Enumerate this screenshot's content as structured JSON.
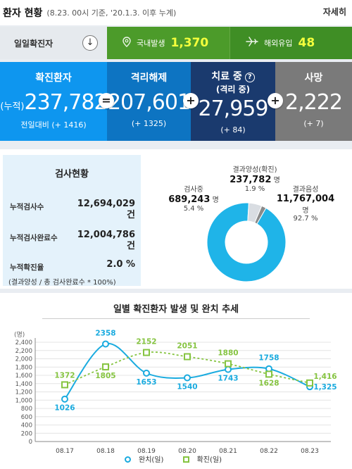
{
  "header": {
    "title": "환자 현황",
    "subtitle": "(8.23. 00시 기준, '20.1.3. 이후 누계)",
    "detail_label": "자세히"
  },
  "daily": {
    "label": "일일확진자",
    "arrow": "↓",
    "domestic_label": "국내발생",
    "domestic_value": "1,370",
    "imported_label": "해외유입",
    "imported_value": "48"
  },
  "stats": {
    "confirmed": {
      "label": "확진환자",
      "prefix": "(누적)",
      "value": "237,782",
      "delta": "전일대비 (+ 1416)"
    },
    "released": {
      "label": "격리해제",
      "value": "207,601",
      "delta": "(+ 1325)"
    },
    "treating": {
      "label": "치료 중",
      "label2": "(격리 중)",
      "value": "27,959",
      "delta": "(+ 84)"
    },
    "deaths": {
      "label": "사망",
      "value": "2,222",
      "delta": "(+ 7)"
    },
    "ops": [
      "=",
      "+",
      "+"
    ]
  },
  "tests": {
    "title": "검사현황",
    "rows": [
      {
        "label": "누적검사수",
        "value": "12,694,029",
        "unit": "건"
      },
      {
        "label": "누적검사완료수",
        "value": "12,004,786",
        "unit": "건"
      },
      {
        "label": "누적확진율",
        "value": "2.0 %",
        "unit": ""
      }
    ],
    "note": "(결과양성 / 총 검사완료수 * 100%)",
    "pie": {
      "positive_label": "결과양성(확진)",
      "positive_value": "237,782",
      "positive_unit": "명",
      "positive_pct": "1.9 %",
      "testing_label": "검사중",
      "testing_value": "689,243",
      "testing_unit": "명",
      "testing_pct": "5.4 %",
      "negative_label": "결과음성",
      "negative_value": "11,767,004",
      "negative_unit": "명",
      "negative_pct": "92.7 %",
      "fractions": {
        "negative": 0.927,
        "testing": 0.054,
        "positive": 0.019
      },
      "colors": {
        "negative": "#1fb4e8",
        "testing": "#d9dde2",
        "positive": "#8a8a8a"
      }
    }
  },
  "chart_data": {
    "type": "line",
    "title": "일별 확진환자 발생 및 완치 추세",
    "yunit": "(명)",
    "x": [
      "08.17",
      "08.18",
      "08.19",
      "08.20",
      "08.21",
      "08.22",
      "08.23"
    ],
    "ylim": [
      0,
      2400
    ],
    "yticks": [
      "0",
      "200",
      "400",
      "600",
      "800",
      "1,000",
      "1,200",
      "1,400",
      "1,600",
      "1,800",
      "2,000",
      "2,200",
      "2,400"
    ],
    "grid": true,
    "legend_position": "bottom",
    "series": [
      {
        "name": "완치(일)",
        "values": [
          1026,
          2358,
          1653,
          1540,
          1743,
          1758,
          1325
        ],
        "labels": [
          "1026",
          "2358",
          "1653",
          "1540",
          "1743",
          "1758",
          "1,325"
        ],
        "color": "#1aabdf",
        "style": "solid",
        "marker": "circle"
      },
      {
        "name": "확진(일)",
        "values": [
          1372,
          1805,
          2152,
          2051,
          1880,
          1628,
          1416
        ],
        "labels": [
          "1372",
          "1805",
          "2152",
          "2051",
          "1880",
          "1628",
          "1,416"
        ],
        "color": "#86c441",
        "style": "dashed",
        "marker": "square"
      }
    ]
  }
}
